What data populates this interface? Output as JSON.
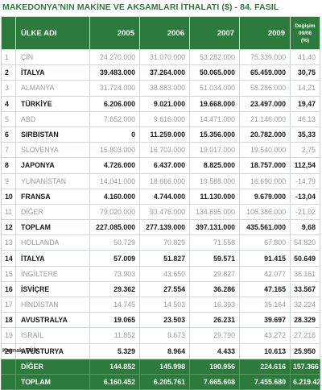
{
  "title": "MAKEDONYA'NIN MAKİNE VE AKSAMLARI İTHALATI ($) - 84. FASIL",
  "header": {
    "country": "ÜLKE ADI",
    "y2005": "2005",
    "y2006": "2006",
    "y2007": "2007",
    "y2009": "2009",
    "change_l1": "Değişim",
    "change_l2": "09/08",
    "change_l3": "(%)"
  },
  "rows": [
    {
      "idx": "1",
      "name": "ÇİN",
      "v2005": "24.270.000",
      "v2006": "31.070.000",
      "v2007": "53.282.000",
      "v2009": "75.339.000",
      "chg": "41,40",
      "bold": false
    },
    {
      "idx": "2",
      "name": "İTALYA",
      "v2005": "39.483.000",
      "v2006": "37.264.000",
      "v2007": "50.065.000",
      "v2009": "65.459.000",
      "chg": "30,75",
      "bold": true
    },
    {
      "idx": "3",
      "name": "ALMANYA",
      "v2005": "31.724.000",
      "v2006": "38.883.000",
      "v2007": "51.034.000",
      "v2009": "58.286.000",
      "chg": "14,21",
      "bold": false
    },
    {
      "idx": "4",
      "name": "TÜRKİYE",
      "v2005": "6.206.000",
      "v2006": "9.021.000",
      "v2007": "19.668.000",
      "v2009": "23.497.000",
      "chg": "19,47",
      "bold": true
    },
    {
      "idx": "5",
      "name": "ABD",
      "v2005": "7.652.000",
      "v2006": "9.616.000",
      "v2007": "14.471.000",
      "v2009": "21.146.000",
      "chg": "46,13",
      "bold": false
    },
    {
      "idx": "6",
      "name": "SIRBISTAN",
      "v2005": "0",
      "v2006": "11.259.000",
      "v2007": "15.356.000",
      "v2009": "20.782.000",
      "chg": "35,33",
      "bold": true
    },
    {
      "idx": "7",
      "name": "SLOVENYA",
      "v2005": "15.803.000",
      "v2006": "16.703.000",
      "v2007": "19.017.000",
      "v2009": "19.540.000",
      "chg": "2,75",
      "bold": false
    },
    {
      "idx": "8",
      "name": "JAPONYA",
      "v2005": "4.726.000",
      "v2006": "6.437.000",
      "v2007": "8.825.000",
      "v2009": "18.757.000",
      "chg": "112,54",
      "bold": true
    },
    {
      "idx": "9",
      "name": "YUNANİSTAN",
      "v2005": "14.041.000",
      "v2006": "18.666.000",
      "v2007": "19.588.000",
      "v2009": "16.690.000",
      "chg": "-14,79",
      "bold": false
    },
    {
      "idx": "10",
      "name": "FRANSA",
      "v2005": "4.160.000",
      "v2006": "4.744.000",
      "v2007": "11.130.000",
      "v2009": "9.679.000",
      "chg": "-13,04",
      "bold": true
    },
    {
      "idx": "11",
      "name": "DİĞER",
      "v2005": "79.020.000",
      "v2006": "93.476.000",
      "v2007": "134.695.000",
      "v2009": "106.386.000",
      "chg": "-21,02",
      "bold": false
    },
    {
      "idx": "12",
      "name": "TOPLAM",
      "v2005": "227.085.000",
      "v2006": "277.139.000",
      "v2007": "397.131.000",
      "v2009": "435.561.000",
      "chg": "9,68",
      "bold": true
    },
    {
      "idx": "13",
      "name": "HOLLANDA",
      "v2005": "50.729",
      "v2006": "70.829",
      "v2007": "71.558",
      "v2009": "67.800",
      "chg": "54.820",
      "bold": false
    },
    {
      "idx": "14",
      "name": "İTALYA",
      "v2005": "57.009",
      "v2006": "51.827",
      "v2007": "59.571",
      "v2009": "91.415",
      "chg": "50.649",
      "bold": true
    },
    {
      "idx": "15",
      "name": "İNGİLTERE",
      "v2005": "73.903",
      "v2006": "43.650",
      "v2007": "29.827",
      "v2009": "42.077",
      "chg": "36.161",
      "bold": false
    },
    {
      "idx": "16",
      "name": "İSVİÇRE",
      "v2005": "29.362",
      "v2006": "27.554",
      "v2007": "36.286",
      "v2009": "47.165",
      "chg": "33.567",
      "bold": true
    },
    {
      "idx": "17",
      "name": "HİNDİSTAN",
      "v2005": "14.745",
      "v2006": "14.503",
      "v2007": "16.393",
      "v2009": "35.164",
      "chg": "32.224",
      "bold": false
    },
    {
      "idx": "18",
      "name": "AVUSTRALYA",
      "v2005": "19.065",
      "v2006": "23.503",
      "v2007": "26.231",
      "v2009": "39.697",
      "chg": "28.329",
      "bold": true
    },
    {
      "idx": "19",
      "name": "İSRAİL",
      "v2005": "11.852",
      "v2006": "9.673",
      "v2007": "29.790",
      "v2009": "43.272",
      "chg": "27.216",
      "bold": false
    },
    {
      "idx": "20",
      "name": "AVUSTURYA",
      "v2005": "5.329",
      "v2006": "8.964",
      "v2007": "4.433",
      "v2009": "10.613",
      "chg": "25.950",
      "bold": true
    }
  ],
  "footer_rows": [
    {
      "name": "DİĞER",
      "v2005": "144.852",
      "v2006": "145.998",
      "v2007": "190.956",
      "v2009": "224.616",
      "chg": "157.366"
    },
    {
      "name": "TOPLAM",
      "v2005": "6.160.452",
      "v2006": "6.205.761",
      "v2007": "7.665.608",
      "v2009": "7.455.680",
      "chg": "6.219.429"
    }
  ],
  "source": "Kaynak: TÜİK",
  "colors": {
    "header_green": "#2d7a3d",
    "muted_text": "#9a9a9a"
  }
}
